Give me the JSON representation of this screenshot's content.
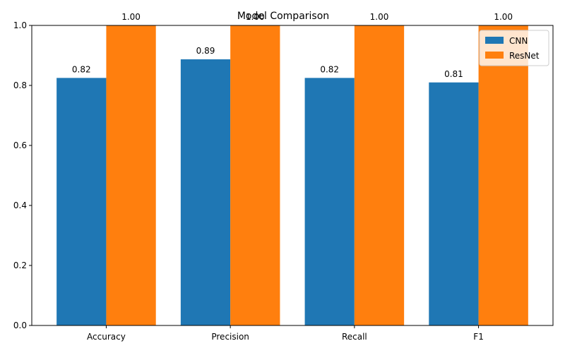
{
  "chart_data": {
    "type": "bar",
    "title": "Model Comparison",
    "xlabel": "",
    "ylabel": "",
    "categories": [
      "Accuracy",
      "Precision",
      "Recall",
      "F1"
    ],
    "series": [
      {
        "name": "CNN",
        "color": "#1f77b4",
        "values": [
          0.825,
          0.887,
          0.825,
          0.81
        ],
        "labels": [
          "0.82",
          "0.89",
          "0.82",
          "0.81"
        ]
      },
      {
        "name": "ResNet",
        "color": "#ff7f0e",
        "values": [
          1.0,
          1.0,
          1.0,
          1.0
        ],
        "labels": [
          "1.00",
          "1.00",
          "1.00",
          "1.00"
        ]
      }
    ],
    "ylim": [
      0,
      1.0
    ],
    "yticks": [
      0.0,
      0.2,
      0.4,
      0.6,
      0.8,
      1.0
    ],
    "ytick_labels": [
      "0.0",
      "0.2",
      "0.4",
      "0.6",
      "0.8",
      "1.0"
    ],
    "grid": false,
    "legend_position": "top-right"
  }
}
